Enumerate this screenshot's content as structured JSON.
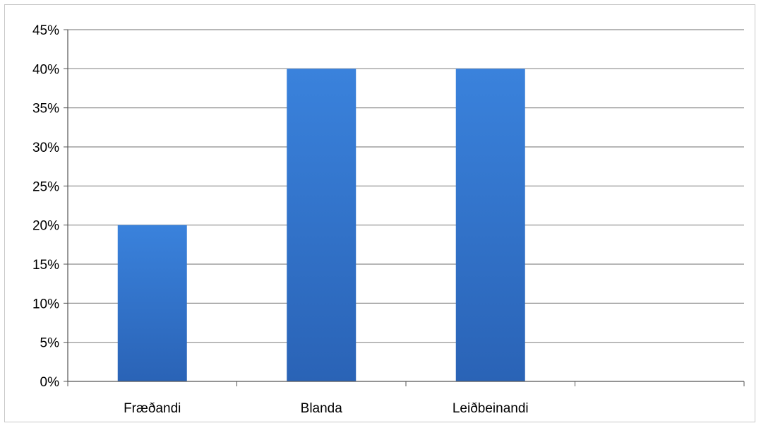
{
  "chart_data": {
    "type": "bar",
    "categories": [
      "Fræðandi",
      "Blanda",
      "Leiðbeinandi"
    ],
    "values": [
      20,
      40,
      40
    ],
    "ylim": [
      0,
      45
    ],
    "yticks": [
      "0%",
      "5%",
      "10%",
      "15%",
      "20%",
      "25%",
      "30%",
      "35%",
      "40%",
      "45%"
    ],
    "grid": true,
    "legend": "none",
    "bar_color": "#2d6fc7",
    "bar_color_light": "#3a82dc",
    "grid_color": "#8c8c8c"
  }
}
